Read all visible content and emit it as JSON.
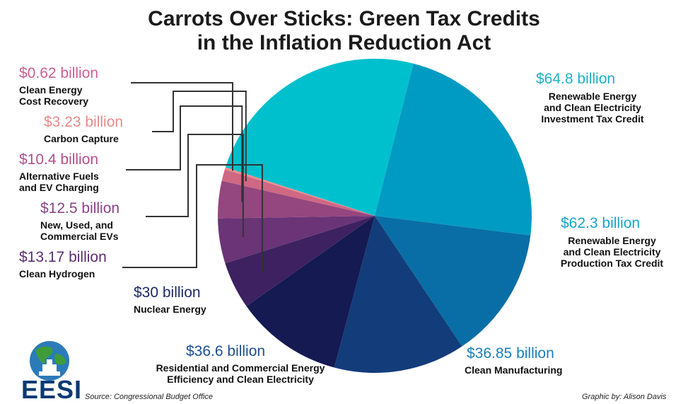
{
  "chart_data": {
    "type": "pie",
    "title": "Carrots Over Sticks: Green Tax Credits in the Inflation Reduction Act",
    "title_lines": [
      "Carrots Over Sticks: Green Tax Credits",
      "in the Inflation Reduction Act"
    ],
    "unit": "billion",
    "slices": [
      {
        "label": "Renewable Energy and Clean Electricity Investment Tax Credit",
        "label_lines": [
          "Renewable Energy",
          "and Clean Electricity",
          "Investment Tax Credit"
        ],
        "value": 64.8,
        "value_label": "$64.8 billion",
        "color": "#00c0cd"
      },
      {
        "label": "Renewable Energy and Clean Electricity Production Tax Credit",
        "label_lines": [
          "Renewable Energy",
          "and Clean Electricity",
          "Production Tax Credit"
        ],
        "value": 62.3,
        "value_label": "$62.3 billion",
        "color": "#009bc2"
      },
      {
        "label": "Clean Manufacturing",
        "label_lines": [
          "Clean Manufacturing"
        ],
        "value": 36.85,
        "value_label": "$36.85 billion",
        "color": "#0a6ea6"
      },
      {
        "label": "Residential and Commercial Energy Efficiency and Clean Electricity",
        "label_lines": [
          "Residential and Commercial Energy",
          "Efficiency and Clean Electricity"
        ],
        "value": 36.6,
        "value_label": "$36.6 billion",
        "color": "#133c7a"
      },
      {
        "label": "Nuclear Energy",
        "label_lines": [
          "Nuclear Energy"
        ],
        "value": 30,
        "value_label": "$30 billion",
        "color": "#151a52"
      },
      {
        "label": "Clean Hydrogen",
        "label_lines": [
          "Clean Hydrogen"
        ],
        "value": 13.17,
        "value_label": "$13.17 billion",
        "color": "#3d2160"
      },
      {
        "label": "New, Used, and Commercial EVs",
        "label_lines": [
          "New, Used, and",
          "Commercial EVs"
        ],
        "value": 12.5,
        "value_label": "$12.5 billion",
        "color": "#6a3477"
      },
      {
        "label": "Alternative Fuels and EV Charging",
        "label_lines": [
          "Alternative Fuels",
          "and EV Charging"
        ],
        "value": 10.4,
        "value_label": "$10.4 billion",
        "color": "#94467f"
      },
      {
        "label": "Carbon Capture",
        "label_lines": [
          "Carbon Capture"
        ],
        "value": 3.23,
        "value_label": "$3.23 billion",
        "color": "#cf6883"
      },
      {
        "label": "Clean Energy Cost Recovery",
        "label_lines": [
          "Clean Energy",
          "Cost Recovery"
        ],
        "value": 0.62,
        "value_label": "$0.62 billion",
        "color": "#f28c8c"
      }
    ],
    "label_value_colors": [
      "#1ab3c4",
      "#1aa4cc",
      "#1a7fb8",
      "#1d4f91",
      "#1d2a6b",
      "#5c2e73",
      "#8a4387",
      "#b24f8c",
      "#e98a8a",
      "#cc5f93"
    ]
  },
  "footer": {
    "source": "Source: Congressional Budget Office",
    "credit": "Graphic by: Alison Davis",
    "logo_text": "EESI"
  }
}
